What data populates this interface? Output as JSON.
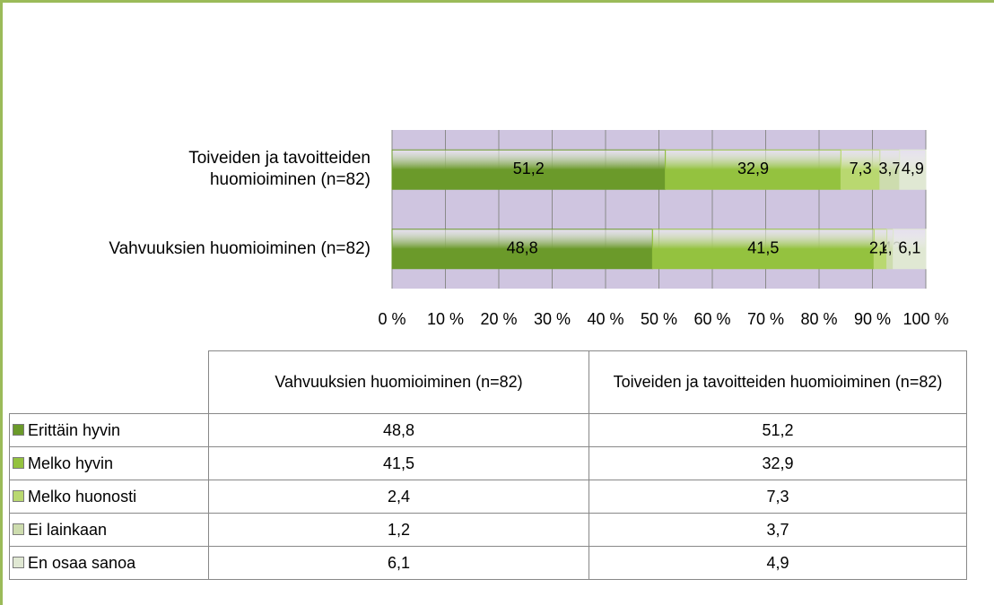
{
  "chart_data": {
    "type": "stacked_bar_horizontal",
    "categories": [
      "Vahvuuksien huomioiminen (n=82)",
      "Toiveiden ja tavoitteiden huomioiminen (n=82)"
    ],
    "series": [
      {
        "name": "Erittäin hyvin",
        "color": "#6b9a2a",
        "values": [
          48.8,
          51.2
        ],
        "value_labels": [
          "48,8",
          "51,2"
        ]
      },
      {
        "name": "Melko hyvin",
        "color": "#94c23f",
        "values": [
          41.5,
          32.9
        ],
        "value_labels": [
          "41,5",
          "32,9"
        ]
      },
      {
        "name": "Melko huonosti",
        "color": "#b9d870",
        "values": [
          2.4,
          7.3
        ],
        "value_labels": [
          "2,4",
          "7,3"
        ]
      },
      {
        "name": "Ei lainkaan",
        "color": "#cddcae",
        "values": [
          1.2,
          3.7
        ],
        "value_labels": [
          "1,2",
          "3,7"
        ]
      },
      {
        "name": "En osaa sanoa",
        "color": "#e0e8d3",
        "values": [
          6.1,
          4.9
        ],
        "value_labels": [
          "6,1",
          "4,9"
        ]
      }
    ],
    "xlim": [
      0,
      100
    ],
    "xticks": [
      {
        "value": 0,
        "label": "0 %"
      },
      {
        "value": 10,
        "label": "10 %"
      },
      {
        "value": 20,
        "label": "20 %"
      },
      {
        "value": 30,
        "label": "30 %"
      },
      {
        "value": 40,
        "label": "40 %"
      },
      {
        "value": 50,
        "label": "50 %"
      },
      {
        "value": 60,
        "label": "60 %"
      },
      {
        "value": 70,
        "label": "70 %"
      },
      {
        "value": 80,
        "label": "80 %"
      },
      {
        "value": 90,
        "label": "90 %"
      },
      {
        "value": 100,
        "label": "100 %"
      }
    ],
    "grid": true,
    "data_table": true
  }
}
